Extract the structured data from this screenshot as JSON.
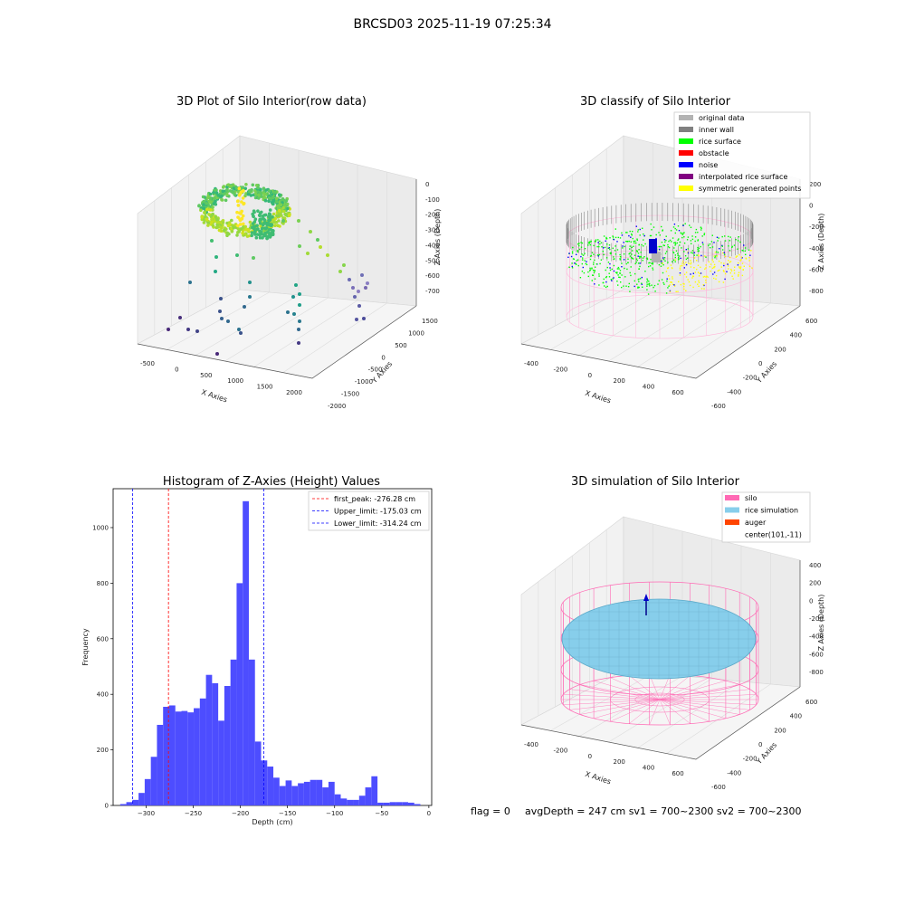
{
  "suptitle": "BRCSD03 2025-11-19 07:25:34",
  "panels": {
    "raw": {
      "title": "3D Plot of Silo Interior(row data)",
      "xlabel": "X Axies",
      "ylabel": "Y Axies",
      "zlabel": "Z Axies (Depth)",
      "xticks": [
        "-500",
        "0",
        "500",
        "1000",
        "1500",
        "2000"
      ],
      "yticks": [
        "1500",
        "1000",
        "500",
        "0",
        "-500",
        "-1000",
        "-1500",
        "-2000"
      ],
      "zticks": [
        "0",
        "-100",
        "-200",
        "-300",
        "-400",
        "-500",
        "-600",
        "-700"
      ]
    },
    "classify": {
      "title": "3D classify of Silo Interior",
      "xlabel": "X Axies",
      "ylabel": "Y Axies",
      "zlabel": "Z Axies (Depth)",
      "xticks": [
        "-400",
        "-200",
        "0",
        "200",
        "400",
        "600"
      ],
      "yticks": [
        "600",
        "400",
        "200",
        "0",
        "-200",
        "-400",
        "-600"
      ],
      "zticks": [
        "200",
        "0",
        "-200",
        "-400",
        "-600",
        "-800"
      ],
      "zticks_top": "400",
      "legend": [
        {
          "label": "original data",
          "color": "#b3b3b3"
        },
        {
          "label": "inner wall",
          "color": "#808080"
        },
        {
          "label": "rice surface",
          "color": "#00ff00"
        },
        {
          "label": "obstacle",
          "color": "#ff0000"
        },
        {
          "label": "noise",
          "color": "#0000ff"
        },
        {
          "label": "interpolated rice surface",
          "color": "#800080"
        },
        {
          "label": "symmetric generated points",
          "color": "#ffff00"
        }
      ]
    },
    "simulation": {
      "title": "3D simulation of Silo Interior",
      "xlabel": "X Axies",
      "ylabel": "Y Axies",
      "zlabel": "Z Axies (Depth)",
      "xticks": [
        "-400",
        "-200",
        "0",
        "200",
        "400",
        "600"
      ],
      "yticks": [
        "600",
        "400",
        "200",
        "0",
        "-200",
        "-400",
        "-600"
      ],
      "zticks": [
        "400",
        "200",
        "0",
        "-200",
        "-400",
        "-600",
        "-800"
      ],
      "legend": [
        {
          "label": "silo",
          "color": "#ff69b4"
        },
        {
          "label": "rice simulation",
          "color": "#87ceeb"
        },
        {
          "label": "auger",
          "color": "#ff4500"
        },
        {
          "label": "center(101,-11)",
          "color": "#ffffff"
        }
      ]
    }
  },
  "chart_data": {
    "type": "bar",
    "title": "Histogram of Z-Axies (Height) Values",
    "xlabel": "Depth (cm)",
    "ylabel": "Frequency",
    "xlim": [
      -335,
      3
    ],
    "ylim": [
      0,
      1140
    ],
    "xticks": [
      -300,
      -250,
      -200,
      -150,
      -100,
      -50,
      0
    ],
    "yticks": [
      0,
      200,
      400,
      600,
      800,
      1000
    ],
    "bar_color": "#4d4dff",
    "bin_width": 6.5,
    "bins_start": [
      -327.5,
      -321,
      -314.5,
      -308,
      -301.5,
      -295,
      -288.5,
      -282,
      -275.5,
      -269,
      -262.5,
      -256,
      -249.5,
      -243,
      -236.5,
      -230,
      -223.5,
      -217,
      -210.5,
      -204,
      -197.5,
      -191,
      -184.5,
      -178,
      -171.5,
      -165,
      -158.5,
      -152,
      -145.5,
      -139,
      -132.5,
      -126,
      -119.5,
      -113,
      -106.5,
      -100,
      -93.5,
      -87,
      -80.5,
      -74,
      -67.5,
      -61,
      -54.5,
      -48,
      -41.5,
      -35,
      -28.5,
      -22,
      -15.5
    ],
    "counts": [
      5,
      12,
      20,
      45,
      95,
      175,
      290,
      355,
      360,
      338,
      340,
      335,
      350,
      385,
      470,
      440,
      305,
      430,
      525,
      800,
      1095,
      525,
      230,
      162,
      140,
      100,
      70,
      90,
      70,
      80,
      85,
      92,
      92,
      65,
      85,
      40,
      25,
      20,
      20,
      35,
      65,
      105,
      10,
      10,
      12,
      12,
      12,
      10,
      5
    ],
    "vlines": [
      {
        "name": "first_peak: -276.28 cm",
        "x": -276.28,
        "color": "#ff0000"
      },
      {
        "name": "Upper_limit: -175.03 cm",
        "x": -175.03,
        "color": "#0000ff"
      },
      {
        "name": "Lower_limit: -314.24 cm",
        "x": -314.24,
        "color": "#0000ff"
      }
    ],
    "legend_position": "top-right"
  },
  "footer": {
    "flag": "flag = 0",
    "stats": "avgDepth = 247 cm  sv1 = 700~2300  sv2 = 700~2300"
  }
}
